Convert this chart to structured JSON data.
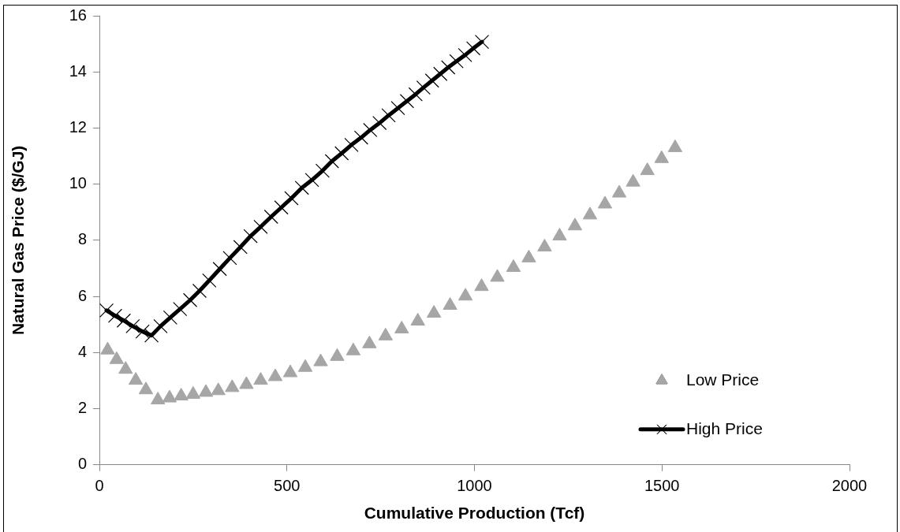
{
  "chart_data": {
    "type": "scatter",
    "xlabel": "Cumulative Production (Tcf)",
    "ylabel": "Natural Gas Price ($/GJ)",
    "xlim": [
      0,
      2000
    ],
    "xticks": [
      0,
      500,
      1000,
      1500,
      2000
    ],
    "ylim": [
      0,
      16
    ],
    "yticks": [
      0,
      2,
      4,
      6,
      8,
      10,
      12,
      14,
      16
    ],
    "grid": false,
    "legend": "bottom right",
    "series": [
      {
        "name": "Low Price",
        "type": "scatter",
        "marker": "triangle",
        "color": "#a6a6a6",
        "x": [
          22,
          46,
          70,
          97,
          124,
          156,
          187,
          218,
          250,
          284,
          317,
          354,
          392,
          430,
          469,
          509,
          549,
          590,
          634,
          677,
          720,
          763,
          806,
          849,
          892,
          935,
          976,
          1019,
          1061,
          1104,
          1145,
          1187,
          1227,
          1268,
          1308,
          1348,
          1386,
          1423,
          1461,
          1499,
          1535
        ],
        "values": [
          4.09,
          3.75,
          3.4,
          3.01,
          2.67,
          2.31,
          2.38,
          2.45,
          2.51,
          2.58,
          2.64,
          2.75,
          2.86,
          3.01,
          3.14,
          3.28,
          3.47,
          3.67,
          3.86,
          4.06,
          4.31,
          4.59,
          4.84,
          5.12,
          5.4,
          5.68,
          6.01,
          6.35,
          6.68,
          7.03,
          7.37,
          7.76,
          8.15,
          8.51,
          8.9,
          9.29,
          9.68,
          10.07,
          10.48,
          10.91,
          11.3
        ]
      },
      {
        "name": "High Price",
        "type": "line",
        "marker": "cross",
        "line_style": "solid",
        "color": "#000000",
        "x": [
          19,
          42,
          65,
          89,
          115,
          139,
          163,
          189,
          215,
          242,
          267,
          293,
          321,
          348,
          376,
          403,
          430,
          458,
          485,
          512,
          540,
          567,
          595,
          620,
          646,
          672,
          698,
          722,
          747,
          771,
          796,
          820,
          843,
          864,
          887,
          909,
          930,
          952,
          975,
          997,
          1020
        ],
        "values": [
          5.5,
          5.31,
          5.14,
          4.94,
          4.75,
          4.61,
          4.94,
          5.25,
          5.55,
          5.87,
          6.2,
          6.57,
          6.98,
          7.37,
          7.76,
          8.15,
          8.48,
          8.84,
          9.17,
          9.5,
          9.87,
          10.15,
          10.48,
          10.82,
          11.1,
          11.4,
          11.66,
          11.93,
          12.18,
          12.45,
          12.71,
          12.96,
          13.2,
          13.44,
          13.69,
          13.93,
          14.16,
          14.38,
          14.6,
          14.84,
          15.07
        ]
      }
    ]
  }
}
